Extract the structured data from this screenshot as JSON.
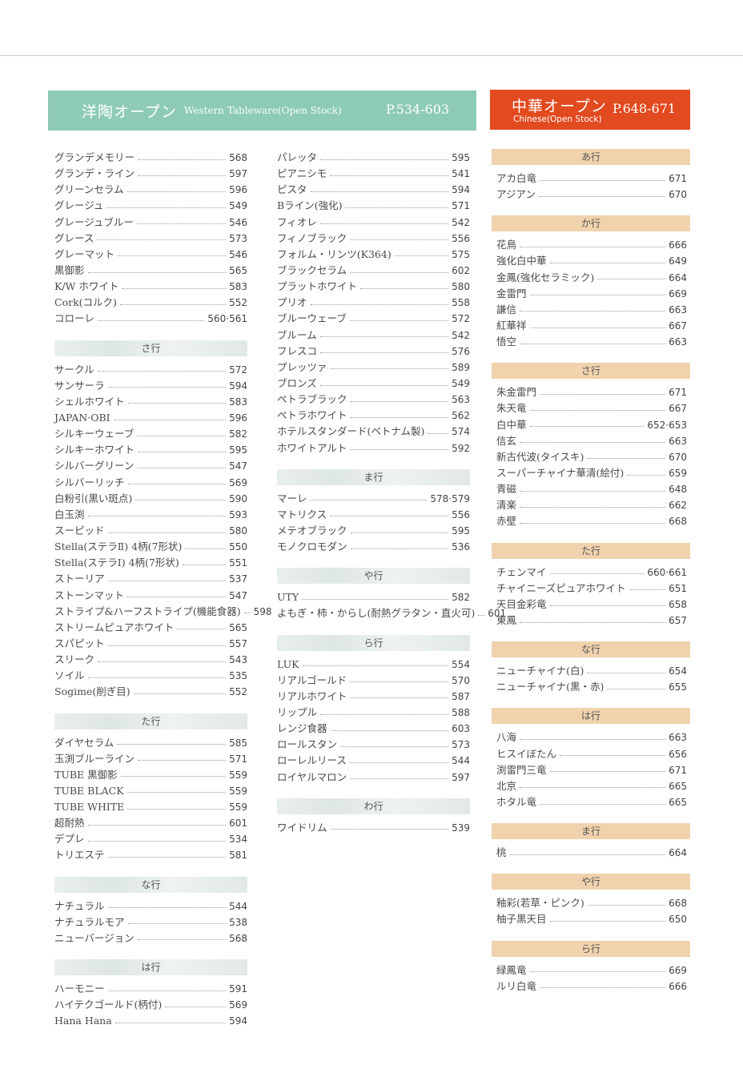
{
  "western": {
    "title": "洋陶オープン",
    "subtitle": "Western Tableware(Open Stock)",
    "pages": "P.534-603",
    "color": "#8ecbb5"
  },
  "chinese": {
    "title": "中華オープン",
    "subtitle": "Chinese(Open Stock)",
    "pages": "P.648-671",
    "color": "#e24a1f"
  },
  "columns": [
    [
      {
        "header": null,
        "items": [
          [
            "グランデメモリー",
            "568"
          ],
          [
            "グランデ・ライン",
            "597"
          ],
          [
            "グリーンセラム",
            "596"
          ],
          [
            "グレージュ",
            "549"
          ],
          [
            "グレージュブルー",
            "546"
          ],
          [
            "グレース",
            "573"
          ],
          [
            "グレーマット",
            "546"
          ],
          [
            "黒御影",
            "565"
          ],
          [
            "K/W ホワイト",
            "583"
          ],
          [
            "Cork(コルク)",
            "552"
          ],
          [
            "コローレ",
            "560·561"
          ]
        ]
      },
      {
        "header": "さ行",
        "items": [
          [
            "サークル",
            "572"
          ],
          [
            "サンサーラ",
            "594"
          ],
          [
            "シェルホワイト",
            "583"
          ],
          [
            "JAPAN·OBI",
            "596"
          ],
          [
            "シルキーウェーブ",
            "582"
          ],
          [
            "シルキーホワイト",
            "595"
          ],
          [
            "シルバーグリーン",
            "547"
          ],
          [
            "シルバーリッチ",
            "569"
          ],
          [
            "白粉引(黒い斑点)",
            "590"
          ],
          [
            "白玉渕",
            "593"
          ],
          [
            "スーピッド",
            "580"
          ],
          [
            "Stella(ステラⅡ) 4柄(7形状)",
            "550"
          ],
          [
            "Stella(ステラⅠ) 4柄(7形状)",
            "551"
          ],
          [
            "ストーリア",
            "537"
          ],
          [
            "ストーンマット",
            "547"
          ],
          [
            "ストライプ&ハーフストライプ(機能食器)",
            "598"
          ],
          [
            "ストリームピュアホワイト",
            "565"
          ],
          [
            "スパピット",
            "557"
          ],
          [
            "スリーク",
            "543"
          ],
          [
            "ソイル",
            "535"
          ],
          [
            "Sogime(削ぎ目)",
            "552"
          ]
        ]
      },
      {
        "header": "た行",
        "items": [
          [
            "ダイヤセラム",
            "585"
          ],
          [
            "玉渕ブルーライン",
            "571"
          ],
          [
            "TUBE 黒御影",
            "559"
          ],
          [
            "TUBE BLACK",
            "559"
          ],
          [
            "TUBE WHITE",
            "559"
          ],
          [
            "超耐熱",
            "601"
          ],
          [
            "デプレ",
            "534"
          ],
          [
            "トリエステ",
            "581"
          ]
        ]
      },
      {
        "header": "な行",
        "items": [
          [
            "ナチュラル",
            "544"
          ],
          [
            "ナチュラルモア",
            "538"
          ],
          [
            "ニューバージョン",
            "568"
          ]
        ]
      },
      {
        "header": "は行",
        "items": [
          [
            "ハーモニー",
            "591"
          ],
          [
            "ハイテクゴールド(柄付)",
            "569"
          ],
          [
            "Hana Hana",
            "594"
          ]
        ]
      }
    ],
    [
      {
        "header": null,
        "items": [
          [
            "パレッタ",
            "595"
          ],
          [
            "ピアニシモ",
            "541"
          ],
          [
            "ピスタ",
            "594"
          ],
          [
            "Bライン(強化)",
            "571"
          ],
          [
            "フィオレ",
            "542"
          ],
          [
            "フィノブラック",
            "556"
          ],
          [
            "フォルム・リンツ(K364)",
            "575"
          ],
          [
            "ブラックセラム",
            "602"
          ],
          [
            "プラットホワイト",
            "580"
          ],
          [
            "プリオ",
            "558"
          ],
          [
            "ブルーウェーブ",
            "572"
          ],
          [
            "ブルーム",
            "542"
          ],
          [
            "フレスコ",
            "576"
          ],
          [
            "プレッツァ",
            "589"
          ],
          [
            "ブロンズ",
            "549"
          ],
          [
            "ペトラブラック",
            "563"
          ],
          [
            "ペトラホワイト",
            "562"
          ],
          [
            "ホテルスタンダード(ベトナム製)",
            "574"
          ],
          [
            "ホワイトアルト",
            "592"
          ]
        ]
      },
      {
        "header": "ま行",
        "items": [
          [
            "マーレ",
            "578·579"
          ],
          [
            "マトリクス",
            "556"
          ],
          [
            "メテオブラック",
            "595"
          ],
          [
            "モノクロモダン",
            "536"
          ]
        ]
      },
      {
        "header": "や行",
        "items": [
          [
            "UTY",
            "582"
          ],
          [
            "よもぎ・柿・からし(耐熱グラタン・直火可)",
            "601"
          ]
        ]
      },
      {
        "header": "ら行",
        "items": [
          [
            "LUK",
            "554"
          ],
          [
            "リアルゴールド",
            "570"
          ],
          [
            "リアルホワイト",
            "587"
          ],
          [
            "リップル",
            "588"
          ],
          [
            "レンジ食器",
            "603"
          ],
          [
            "ロールスタン",
            "573"
          ],
          [
            "ローレルリース",
            "544"
          ],
          [
            "ロイヤルマロン",
            "597"
          ]
        ]
      },
      {
        "header": "わ行",
        "items": [
          [
            "ワイドリム",
            "539"
          ]
        ]
      }
    ],
    [
      {
        "header": "あ行",
        "items": [
          [
            "アカ白竜",
            "671"
          ],
          [
            "アジアン",
            "670"
          ]
        ]
      },
      {
        "header": "か行",
        "items": [
          [
            "花鳥",
            "666"
          ],
          [
            "強化白中華",
            "649"
          ],
          [
            "金鳳(強化セラミック)",
            "664"
          ],
          [
            "金雷門",
            "669"
          ],
          [
            "謙信",
            "663"
          ],
          [
            "紅華祥",
            "667"
          ],
          [
            "悟空",
            "663"
          ]
        ]
      },
      {
        "header": "さ行",
        "items": [
          [
            "朱金雷門",
            "671"
          ],
          [
            "朱天竜",
            "667"
          ],
          [
            "白中華",
            "652·653"
          ],
          [
            "信玄",
            "663"
          ],
          [
            "新古代波(タイスキ)",
            "670"
          ],
          [
            "スーパーチャイナ華清(絵付)",
            "659"
          ],
          [
            "青磁",
            "648"
          ],
          [
            "清楽",
            "662"
          ],
          [
            "赤壁",
            "668"
          ]
        ]
      },
      {
        "header": "た行",
        "items": [
          [
            "チェンマイ",
            "660·661"
          ],
          [
            "チャイニーズピュアホワイト",
            "651"
          ],
          [
            "天目金彩竜",
            "658"
          ],
          [
            "東鳳",
            "657"
          ]
        ]
      },
      {
        "header": "な行",
        "items": [
          [
            "ニューチャイナ(白)",
            "654"
          ],
          [
            "ニューチャイナ(黒・赤)",
            "655"
          ]
        ]
      },
      {
        "header": "は行",
        "items": [
          [
            "八海",
            "663"
          ],
          [
            "ヒスイぼたん",
            "656"
          ],
          [
            "渕雷門三竜",
            "671"
          ],
          [
            "北京",
            "665"
          ],
          [
            "ホタル竜",
            "665"
          ]
        ]
      },
      {
        "header": "ま行",
        "items": [
          [
            "桃",
            "664"
          ]
        ]
      },
      {
        "header": "や行",
        "items": [
          [
            "釉彩(若草・ピンク)",
            "668"
          ],
          [
            "柚子黒天目",
            "650"
          ]
        ]
      },
      {
        "header": "ら行",
        "items": [
          [
            "緑鳳竜",
            "669"
          ],
          [
            "ルリ白竜",
            "666"
          ]
        ]
      }
    ]
  ]
}
